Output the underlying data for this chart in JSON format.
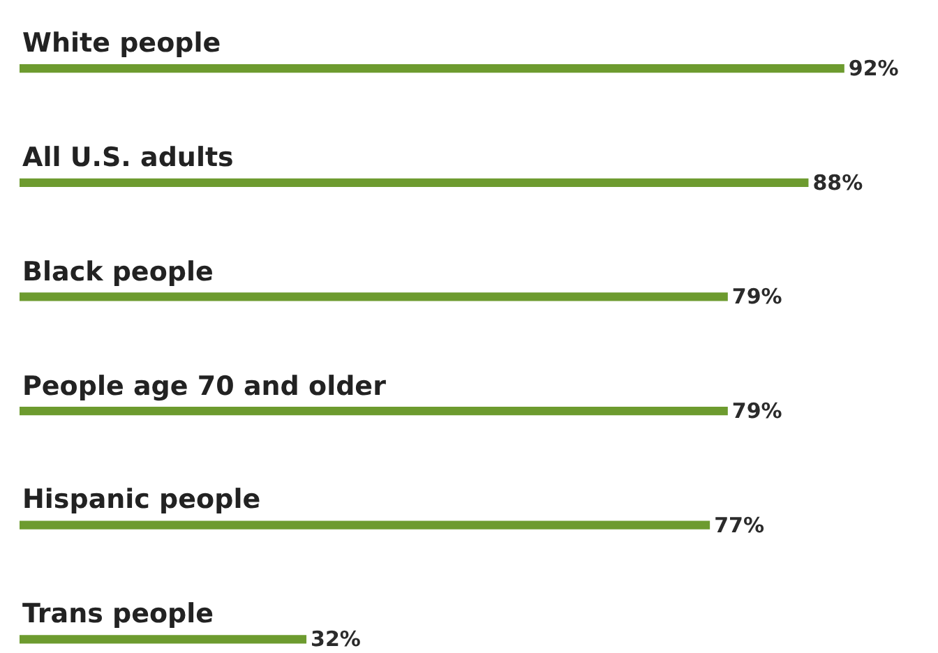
{
  "chart_data": {
    "type": "bar",
    "orientation": "horizontal",
    "categories": [
      "White people",
      "All U.S. adults",
      "Black people",
      "People age 70 and older",
      "Hispanic people",
      "Trans people"
    ],
    "values": [
      92,
      88,
      79,
      79,
      77,
      32
    ],
    "value_labels": [
      "92%",
      "88%",
      "79%",
      "79%",
      "77%",
      "32%"
    ],
    "color": "#6d9b2f"
  }
}
